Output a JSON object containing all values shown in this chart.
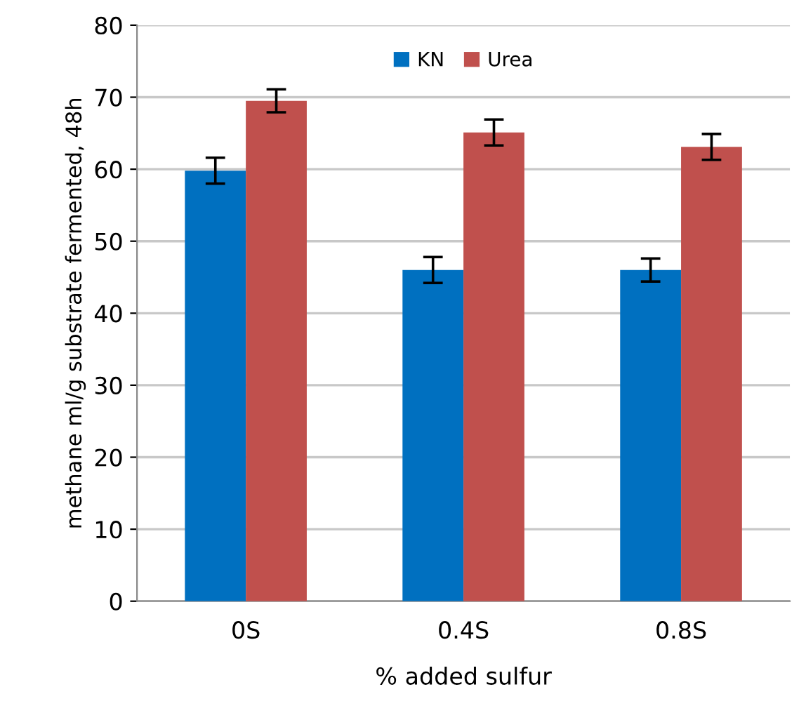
{
  "chart_data": {
    "type": "bar",
    "xlabel": "% added sulfur",
    "ylabel": "methane ml/g substrate fermented, 48h",
    "categories": [
      "0S",
      "0.4S",
      "0.8S"
    ],
    "series": [
      {
        "name": "KN",
        "color": "#0070c0",
        "values": [
          59.8,
          46,
          46
        ],
        "errors": [
          1.8,
          1.8,
          1.6
        ]
      },
      {
        "name": "Urea",
        "color": "#c0504d",
        "values": [
          69.5,
          65.1,
          63.1
        ],
        "errors": [
          1.6,
          1.8,
          1.8
        ]
      }
    ],
    "ylim": [
      0,
      80
    ],
    "yticks": [
      0,
      10,
      20,
      30,
      40,
      50,
      60,
      70,
      80
    ],
    "grid": "y",
    "legend": "top"
  }
}
